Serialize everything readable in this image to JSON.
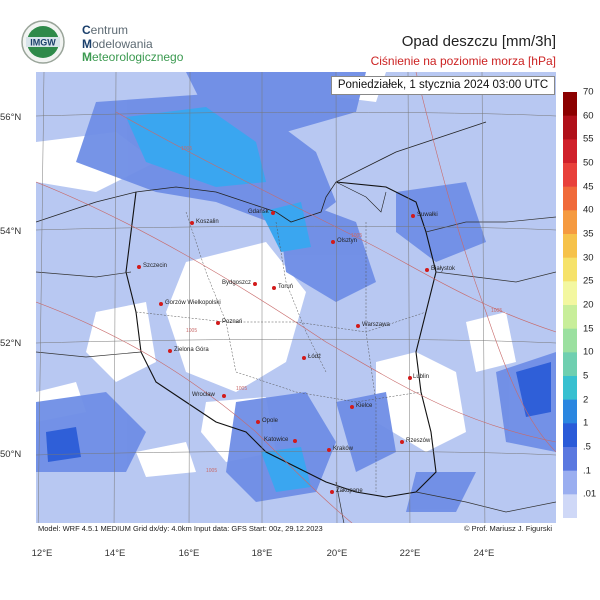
{
  "org": {
    "line1_first": "C",
    "line1_rest": "entrum",
    "line2_first": "M",
    "line2_rest": "odelowania",
    "line3_first": "M",
    "line3_rest": "eteorologicznego",
    "logo_text": "IMGW"
  },
  "title": "Opad deszczu [mm/3h]",
  "subtitle": "Ciśnienie na poziomie morza [hPa]",
  "datetime": "Poniedziałek, 1 stycznia 2024 03:00 UTC",
  "info": {
    "model": "Model: WRF 4.5.1 MEDIUM   Grid dx/dy: 4.0km   Input data: GFS   Start: 00z, 29.12.2023",
    "copyright": "© Prof. Mariusz J. Figurski"
  },
  "lat_labels": [
    "56°N",
    "54°N",
    "52°N",
    "50°N"
  ],
  "lon_labels": [
    "12°E",
    "14°E",
    "16°E",
    "18°E",
    "20°E",
    "22°E",
    "24°E"
  ],
  "cities": [
    {
      "name": "Gdańsk"
    },
    {
      "name": "Koszalin"
    },
    {
      "name": "Suwałki"
    },
    {
      "name": "Olsztyn"
    },
    {
      "name": "Szczecin"
    },
    {
      "name": "Bydgoszcz"
    },
    {
      "name": "Toruń"
    },
    {
      "name": "Białystok"
    },
    {
      "name": "Gorzów Wielkopolski"
    },
    {
      "name": "Poznań"
    },
    {
      "name": "Warszawa"
    },
    {
      "name": "Zielona Góra"
    },
    {
      "name": "Łódź"
    },
    {
      "name": "Lublin"
    },
    {
      "name": "Wrocław"
    },
    {
      "name": "Kielce"
    },
    {
      "name": "Opole"
    },
    {
      "name": "Katowice"
    },
    {
      "name": "Kraków"
    },
    {
      "name": "Rzeszów"
    },
    {
      "name": "Zakopane"
    }
  ],
  "colorbar": {
    "labels": [
      "70",
      "60",
      "55",
      "50",
      "45",
      "40",
      "35",
      "30",
      "25",
      "20",
      "15",
      "10",
      "5",
      "2",
      "1",
      ".5",
      ".1",
      ".01"
    ],
    "colors": [
      "#8b0000",
      "#b0101a",
      "#d0202a",
      "#e8403a",
      "#f06a3a",
      "#f59a40",
      "#f6c24a",
      "#f6e26a",
      "#f3f7a0",
      "#c8ee9a",
      "#9be0a0",
      "#6fcfb0",
      "#38c0d0",
      "#2b86e0",
      "#2a5bd8",
      "#5a78e0",
      "#9aaef0",
      "#cfd8f7"
    ]
  },
  "isobar_labels": [
    "1005",
    "1005",
    "1005",
    "1005",
    "1005",
    "1005"
  ]
}
